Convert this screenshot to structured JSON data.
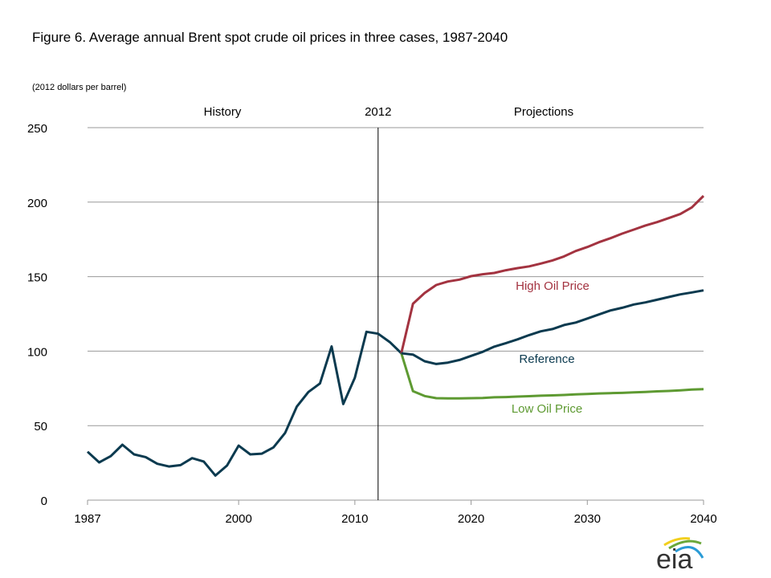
{
  "chart_data": {
    "type": "line",
    "title": "Figure 6. Average annual  Brent spot crude oil prices in three cases, 1987-2040",
    "ylabel": "(2012 dollars per barrel)",
    "xlim": [
      1987,
      2040
    ],
    "ylim": [
      0,
      250
    ],
    "x_ticks": [
      "1987",
      "2000",
      "2010",
      "2020",
      "2030",
      "2040"
    ],
    "y_ticks": [
      "0",
      "50",
      "100",
      "150",
      "200",
      "250"
    ],
    "grid": "horizontal",
    "annotations": {
      "history": "History",
      "divider": "2012",
      "projections": "Projections"
    },
    "divider_year": 2012,
    "series": [
      {
        "color": "#0b3a4f",
        "x_start": 1987,
        "values": [
          32.5,
          25.3,
          29.5,
          37.2,
          30.7,
          28.9,
          24.4,
          22.6,
          23.5,
          28.2,
          25.9,
          16.5,
          23.2,
          36.6,
          30.7,
          31.2,
          35.4,
          45.1,
          62.7,
          72.6,
          78.3,
          103.1,
          64.5,
          82.1,
          113.0,
          111.7,
          106.1,
          98.6
        ]
      },
      {
        "name": "High Oil Price",
        "color": "#a33340",
        "x_start": 2014,
        "values": [
          98.6,
          131.8,
          139.0,
          144.4,
          146.7,
          148.0,
          150.3,
          151.6,
          152.5,
          154.3,
          155.7,
          156.9,
          158.8,
          160.9,
          163.6,
          167.2,
          169.9,
          173.1,
          175.8,
          178.9,
          181.6,
          184.3,
          186.6,
          189.3,
          192.0,
          196.5,
          204.2
        ]
      },
      {
        "name": "Reference",
        "color": "#0b3a4f",
        "x_start": 2014,
        "values": [
          98.6,
          97.7,
          93.2,
          91.4,
          92.3,
          94.1,
          96.8,
          99.5,
          103.0,
          105.4,
          107.9,
          110.8,
          113.3,
          114.8,
          117.5,
          119.2,
          121.9,
          124.6,
          127.3,
          129.1,
          131.3,
          132.7,
          134.5,
          136.3,
          138.1,
          139.4,
          140.8
        ]
      },
      {
        "name": "Low Oil Price",
        "color": "#5e9a32",
        "x_start": 2014,
        "values": [
          98.6,
          73.1,
          69.9,
          68.4,
          68.3,
          68.3,
          68.4,
          68.6,
          69.0,
          69.2,
          69.5,
          69.8,
          70.1,
          70.3,
          70.6,
          71.0,
          71.3,
          71.6,
          71.8,
          72.0,
          72.3,
          72.6,
          73.0,
          73.3,
          73.7,
          74.2,
          74.5
        ]
      }
    ]
  },
  "logo": {
    "text": "eia"
  }
}
